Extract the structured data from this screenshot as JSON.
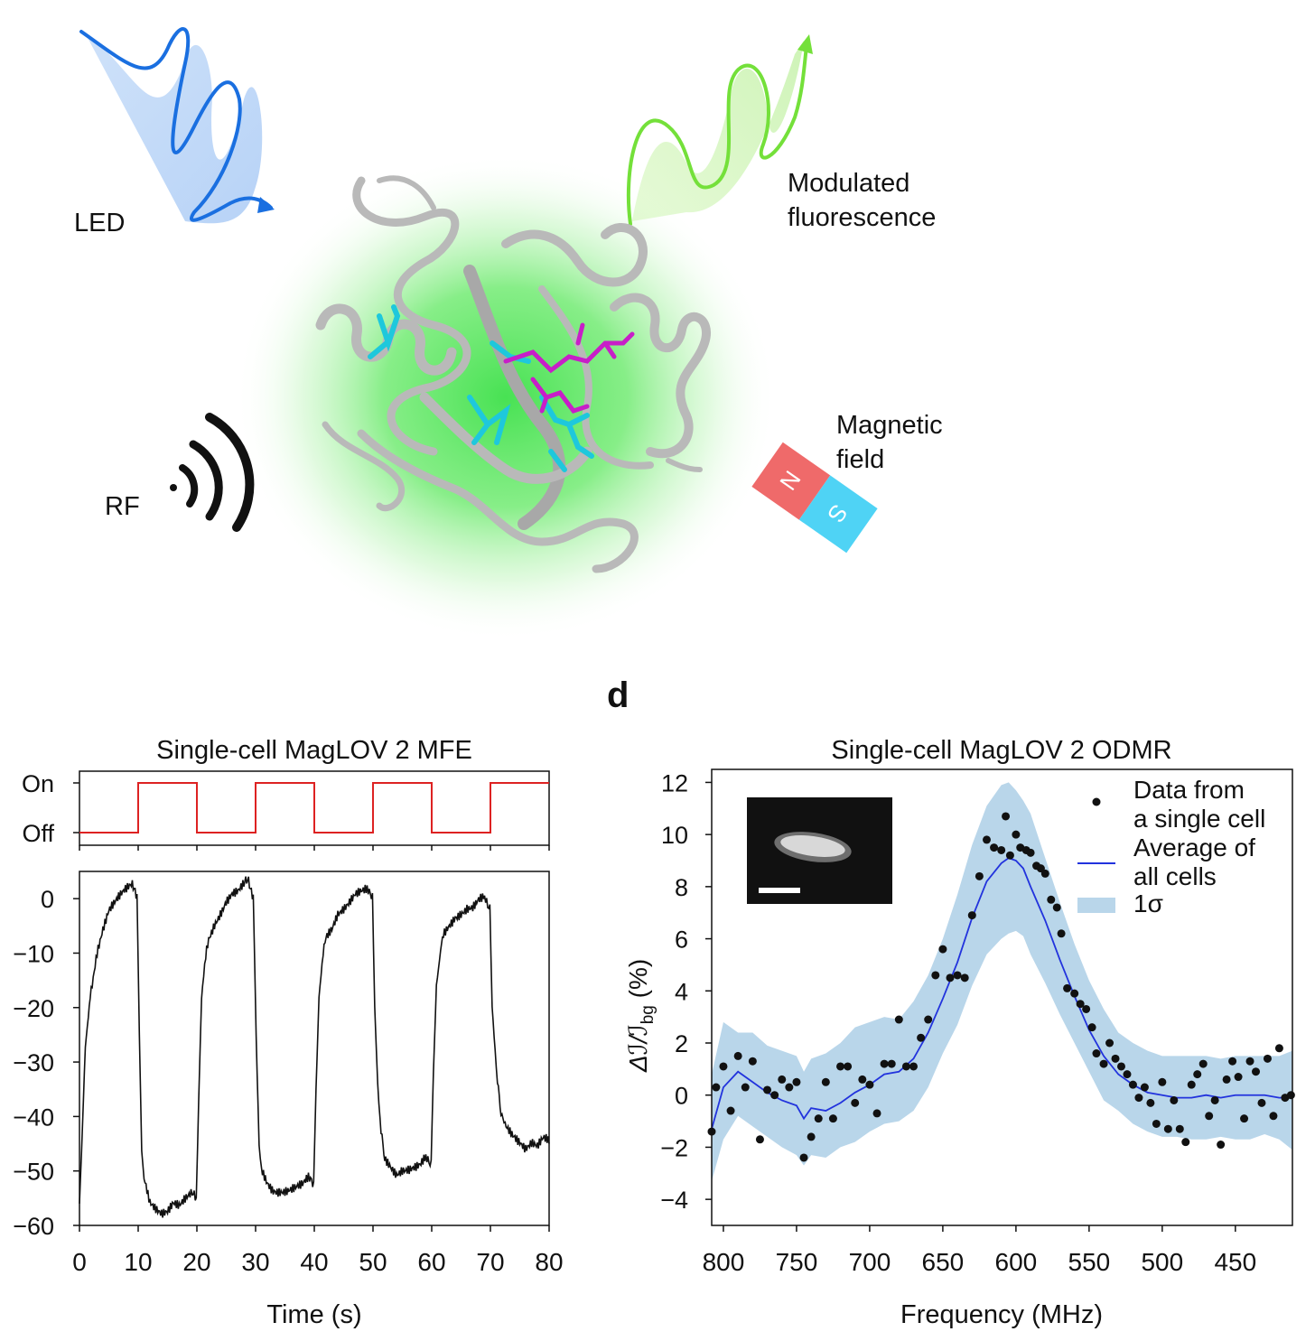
{
  "schematic": {
    "led_label": "LED",
    "fluorescence_label": "Modulated\nfluorescence",
    "rf_label": "RF",
    "magnet_label": "Magnetic\nfield",
    "magnet_north": "N",
    "magnet_south": "S",
    "colors": {
      "led": "#1a6fe0",
      "fluorescence": "#74e03a",
      "glow": "#3ee04a",
      "magnet_n": "#ef6a6a",
      "magnet_s": "#4fd3f5",
      "ligand_cyan": "#1ec8dc",
      "ligand_magenta": "#c81ec8"
    }
  },
  "panel_d_letter": "d",
  "chart_data": [
    {
      "type": "line",
      "title": "Single-cell MagLOV 2 MFE",
      "top_panel": {
        "ytick_labels": [
          "On",
          "Off"
        ],
        "state_changes_x": [
          10,
          20,
          30,
          40,
          50,
          60,
          70
        ],
        "initial_state": "Off",
        "color": "#dd2222"
      },
      "xlabel": "Time (s)",
      "xlim": [
        0,
        80
      ],
      "xticks": [
        0,
        10,
        20,
        30,
        40,
        50,
        60,
        70,
        80
      ],
      "ylim": [
        -60,
        5
      ],
      "yticks": [
        0,
        -10,
        -20,
        -30,
        -40,
        -50,
        -60
      ],
      "ytick_labels": [
        "0",
        "−10",
        "−20",
        "−30",
        "−40",
        "−50",
        "−60"
      ],
      "series": [
        {
          "color": "#111111",
          "x": [
            0,
            0.5,
            1,
            2,
            3,
            4,
            5,
            6,
            7,
            8,
            9,
            9.8,
            10.2,
            10.6,
            11,
            11.5,
            12,
            13,
            14,
            15,
            16,
            17,
            18,
            19,
            19.9,
            20.3,
            20.8,
            21.5,
            22,
            23,
            24,
            25,
            26,
            27,
            28,
            28.8,
            29.6,
            30.1,
            30.6,
            31,
            31.5,
            32,
            33,
            34,
            35,
            36,
            37,
            38,
            39,
            39.9,
            40.3,
            40.8,
            41.5,
            42,
            43,
            44,
            45,
            46,
            47,
            48,
            49,
            49.9,
            50.3,
            50.8,
            51.2,
            51.7,
            52,
            53,
            54,
            55,
            56,
            57,
            58,
            59,
            59.9,
            60.3,
            60.8,
            61.5,
            62,
            63,
            64,
            65,
            66,
            67,
            68,
            69,
            69.9,
            70.3,
            70.8,
            71.2,
            71.8,
            72.5,
            73.5,
            75,
            76,
            77,
            78,
            79,
            80
          ],
          "y": [
            -56,
            -42,
            -27,
            -16,
            -9,
            -5,
            -2,
            -1,
            0,
            1,
            2,
            1,
            -25,
            -46,
            -51,
            -53,
            -55,
            -56,
            -57,
            -57,
            -56,
            -57,
            -56,
            -55,
            -55,
            -37,
            -18,
            -10,
            -7,
            -4,
            -2,
            0,
            1,
            1,
            2,
            3,
            1,
            -25,
            -45,
            -50,
            -51,
            -52,
            -53,
            -53,
            -53,
            -53,
            -53,
            -53,
            -52,
            -52,
            -35,
            -18,
            -10,
            -7,
            -5,
            -2,
            -1,
            0,
            1,
            1,
            1,
            1,
            -20,
            -34,
            -42,
            -46,
            -48,
            -49,
            -50,
            -49,
            -49,
            -49,
            -49,
            -48,
            -48,
            -32,
            -16,
            -10,
            -7,
            -5,
            -3,
            -2,
            -1,
            -1,
            0,
            0,
            -1,
            -20,
            -28,
            -35,
            -39,
            -42,
            -43,
            -44,
            -45,
            -44,
            -45,
            -44,
            -45
          ]
        }
      ]
    },
    {
      "type": "scatter",
      "title": "Single-cell MagLOV 2 ODMR",
      "xlabel": "Frequency (MHz)",
      "ylabel": "Δℐ/ℐ",
      "ylabel_sub": "bg",
      "ylabel_unit": " (%)",
      "xlim": [
        808,
        411
      ],
      "x_reversed": true,
      "xticks": [
        800,
        750,
        700,
        650,
        600,
        550,
        500,
        450
      ],
      "ylim": [
        -5,
        12.5
      ],
      "yticks": [
        12,
        10,
        8,
        6,
        4,
        2,
        0,
        -2,
        -4
      ],
      "ytick_labels": [
        "12",
        "10",
        "8",
        "6",
        "4",
        "2",
        "0",
        "−2",
        "−4"
      ],
      "legend": {
        "placement": "top-right",
        "entries": [
          "Data from\na single cell",
          "Average of\nall cells",
          "1σ"
        ]
      },
      "inset_present": true,
      "series": [
        {
          "name": "Data from\na single cell",
          "kind": "scatter",
          "color": "#111111",
          "x": [
            808,
            805,
            800,
            795,
            790,
            785,
            780,
            775,
            770,
            765,
            760,
            755,
            750,
            745,
            740,
            735,
            730,
            725,
            720,
            715,
            710,
            705,
            700,
            695,
            690,
            685,
            680,
            675,
            670,
            665,
            660,
            655,
            650,
            645,
            640,
            635,
            630,
            625,
            620,
            615,
            610,
            607,
            604,
            600,
            597,
            593,
            590,
            586,
            583,
            580,
            576,
            572,
            569,
            565,
            560,
            556,
            552,
            548,
            545,
            540,
            536,
            532,
            528,
            524,
            520,
            516,
            512,
            508,
            504,
            500,
            496,
            492,
            488,
            484,
            480,
            476,
            472,
            468,
            464,
            460,
            456,
            452,
            448,
            444,
            440,
            436,
            432,
            428,
            424,
            420,
            416,
            412
          ],
          "y": [
            -1.4,
            0.3,
            1.1,
            -0.6,
            1.5,
            0.3,
            1.3,
            -1.7,
            0.2,
            0,
            0.6,
            0.3,
            0.5,
            -2.4,
            -1.6,
            -0.9,
            0.5,
            -0.9,
            1.1,
            1.1,
            -0.3,
            0.6,
            0.4,
            -0.7,
            1.2,
            1.2,
            2.9,
            1.1,
            1.1,
            2.2,
            2.9,
            4.6,
            5.6,
            4.5,
            4.6,
            4.5,
            6.9,
            8.4,
            9.8,
            9.5,
            9.4,
            10.7,
            9.2,
            10,
            9.5,
            9.4,
            9.3,
            8.8,
            8.7,
            8.5,
            7.5,
            7.2,
            6.2,
            4.1,
            3.9,
            3.5,
            3.3,
            2.6,
            1.6,
            1.2,
            2,
            1.4,
            1.1,
            0.8,
            0.4,
            -0.1,
            0.3,
            -0.3,
            -1.1,
            0.5,
            -1.3,
            -0.2,
            -1.3,
            -1.8,
            0.4,
            0.8,
            1.2,
            -0.8,
            -0.2,
            -1.9,
            0.6,
            1.3,
            0.7,
            -0.9,
            1.3,
            0.9,
            -0.3,
            1.4,
            -0.8,
            1.8,
            -0.1,
            0
          ]
        },
        {
          "name": "Average of\nall cells",
          "kind": "line",
          "color": "#2233dd",
          "x": [
            808,
            800,
            790,
            780,
            770,
            760,
            750,
            745,
            740,
            730,
            720,
            710,
            700,
            690,
            680,
            670,
            660,
            650,
            640,
            630,
            620,
            610,
            605,
            600,
            595,
            590,
            580,
            570,
            560,
            550,
            540,
            530,
            520,
            510,
            500,
            490,
            480,
            470,
            460,
            450,
            440,
            430,
            420,
            411
          ],
          "y": [
            -1.3,
            0.3,
            0.9,
            0.5,
            0.1,
            -0.2,
            -0.4,
            -0.9,
            -0.5,
            -0.6,
            -0.3,
            0.1,
            0.4,
            0.8,
            0.9,
            1.4,
            2.4,
            3.7,
            5.1,
            6.8,
            8.2,
            8.9,
            9.1,
            9.0,
            8.7,
            8.0,
            6.7,
            5.2,
            3.8,
            2.5,
            1.5,
            0.8,
            0.4,
            0.1,
            0.0,
            -0.1,
            -0.1,
            0.0,
            -0.1,
            0.0,
            0.0,
            0.0,
            -0.1,
            -0.1
          ]
        },
        {
          "name": "1σ",
          "kind": "band",
          "color": "#b9d6ea",
          "x": [
            808,
            800,
            790,
            780,
            770,
            760,
            750,
            745,
            740,
            730,
            720,
            710,
            700,
            690,
            680,
            670,
            660,
            650,
            640,
            630,
            620,
            610,
            605,
            600,
            595,
            590,
            580,
            570,
            560,
            550,
            540,
            530,
            520,
            510,
            500,
            490,
            480,
            470,
            460,
            450,
            440,
            430,
            420,
            411
          ],
          "upper": [
            0.8,
            2.8,
            2.4,
            2.4,
            1.9,
            1.7,
            1.5,
            0.9,
            1.4,
            1.6,
            2.0,
            2.6,
            2.8,
            3.0,
            2.9,
            3.6,
            4.6,
            6.0,
            7.7,
            9.6,
            11.1,
            11.9,
            12.0,
            11.7,
            11.3,
            10.8,
            9.1,
            7.4,
            5.8,
            4.4,
            3.3,
            2.4,
            2.0,
            1.7,
            1.5,
            1.5,
            1.5,
            1.5,
            1.4,
            1.5,
            1.5,
            1.5,
            1.5,
            1.7
          ],
          "lower": [
            -3.3,
            -1.7,
            -0.8,
            -1.2,
            -1.6,
            -2.0,
            -2.3,
            -2.7,
            -2.3,
            -2.4,
            -2.0,
            -1.8,
            -1.4,
            -1.1,
            -1.0,
            -0.6,
            0.3,
            1.6,
            2.7,
            4.2,
            5.4,
            6.0,
            6.2,
            6.3,
            6.1,
            5.4,
            4.3,
            3.1,
            2.0,
            0.9,
            -0.2,
            -0.6,
            -1.1,
            -1.4,
            -1.6,
            -1.6,
            -1.7,
            -1.7,
            -1.6,
            -1.7,
            -1.7,
            -1.5,
            -1.7,
            -2.1
          ]
        }
      ]
    }
  ]
}
